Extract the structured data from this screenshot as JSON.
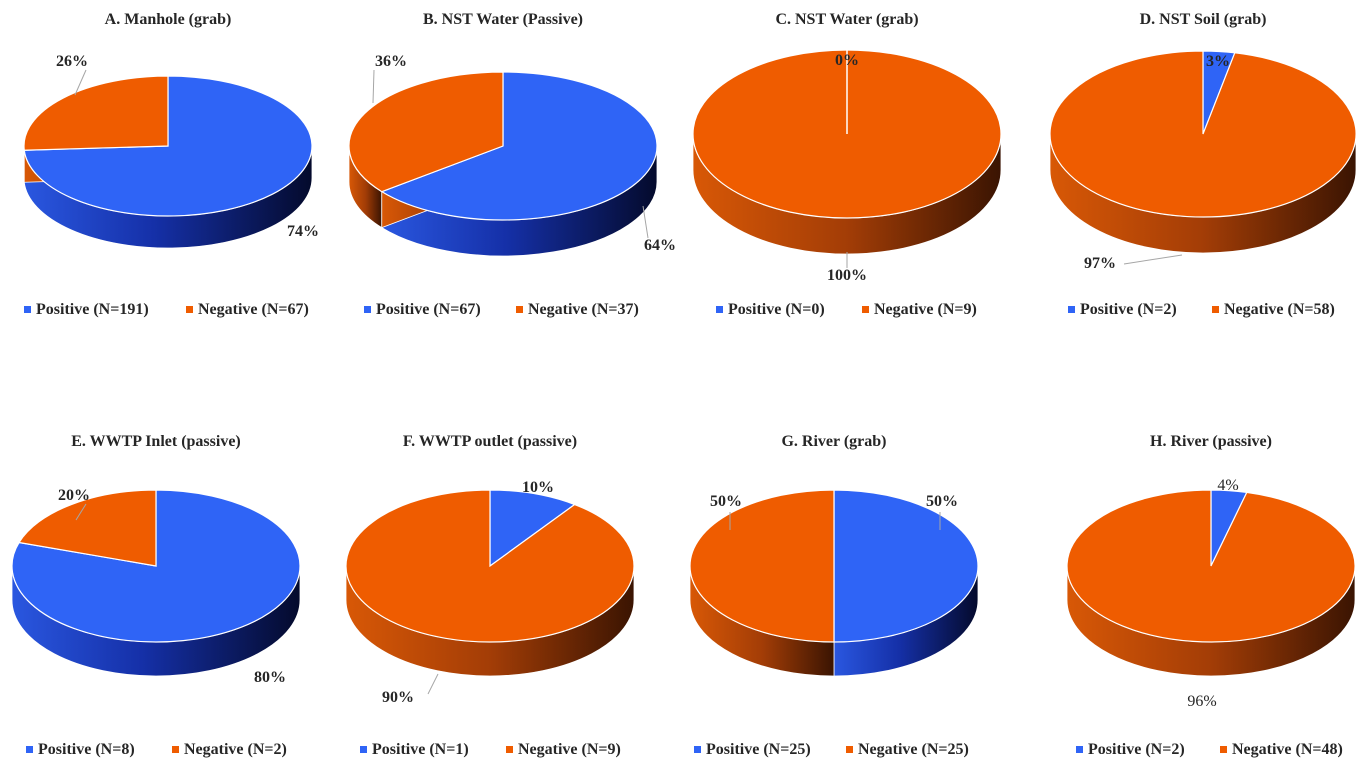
{
  "chart_data": [
    {
      "type": "pie",
      "title": "A. Manhole (grab)",
      "categories": [
        "Positive (N=191)",
        "Negative (N=67)"
      ],
      "values": [
        191,
        67
      ],
      "data_labels": [
        "74%",
        "26%"
      ],
      "colors": [
        "#2f64f6",
        "#ef5c00"
      ],
      "legend_position": "bottom"
    },
    {
      "type": "pie",
      "title": "B. NST Water (Passive)",
      "categories": [
        "Positive (N=67)",
        "Negative (N=37)"
      ],
      "values": [
        67,
        37
      ],
      "data_labels": [
        "64%",
        "36%"
      ],
      "colors": [
        "#2f64f6",
        "#ef5c00"
      ],
      "legend_position": "bottom"
    },
    {
      "type": "pie",
      "title": "C. NST Water (grab)",
      "categories": [
        "Positive (N=0)",
        "Negative (N=9)"
      ],
      "values": [
        0,
        9
      ],
      "data_labels": [
        "0%",
        "100%"
      ],
      "colors": [
        "#2f64f6",
        "#ef5c00"
      ],
      "legend_position": "bottom"
    },
    {
      "type": "pie",
      "title": "D. NST Soil (grab)",
      "categories": [
        "Positive (N=2)",
        "Negative (N=58)"
      ],
      "values": [
        2,
        58
      ],
      "data_labels": [
        "3%",
        "97%"
      ],
      "colors": [
        "#2f64f6",
        "#ef5c00"
      ],
      "legend_position": "bottom"
    },
    {
      "type": "pie",
      "title": "E. WWTP Inlet (passive)",
      "categories": [
        "Positive (N=8)",
        "Negative (N=2)"
      ],
      "values": [
        8,
        2
      ],
      "data_labels": [
        "80%",
        "20%"
      ],
      "colors": [
        "#2f64f6",
        "#ef5c00"
      ],
      "legend_position": "bottom"
    },
    {
      "type": "pie",
      "title": "F. WWTP  outlet (passive)",
      "categories": [
        "Positive (N=1)",
        "Negative (N=9)"
      ],
      "values": [
        1,
        9
      ],
      "data_labels": [
        "10%",
        "90%"
      ],
      "colors": [
        "#2f64f6",
        "#ef5c00"
      ],
      "legend_position": "bottom"
    },
    {
      "type": "pie",
      "title": "G. River (grab)",
      "categories": [
        "Positive (N=25)",
        "Negative (N=25)"
      ],
      "values": [
        25,
        25
      ],
      "data_labels": [
        "50%",
        "50%"
      ],
      "colors": [
        "#2f64f6",
        "#ef5c00"
      ],
      "legend_position": "bottom"
    },
    {
      "type": "pie",
      "title": "H. River (passive)",
      "categories": [
        "Positive (N=2)",
        "Negative (N=48)"
      ],
      "values": [
        2,
        48
      ],
      "data_labels": [
        "4%",
        "96%"
      ],
      "colors": [
        "#2f64f6",
        "#ef5c00"
      ],
      "legend_position": "bottom"
    }
  ]
}
